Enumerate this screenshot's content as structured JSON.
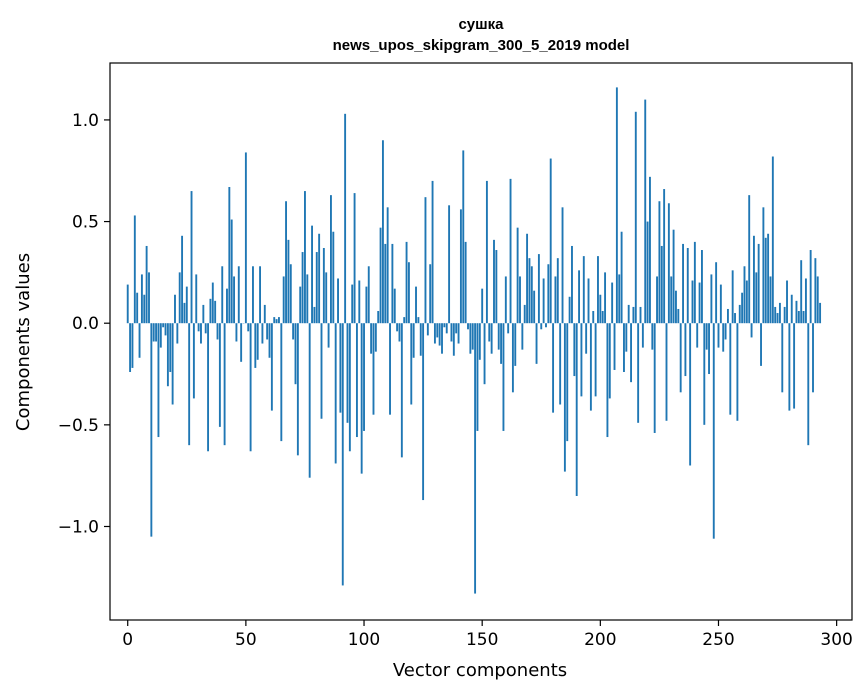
{
  "chart_data": {
    "type": "bar",
    "title": "сушка",
    "subtitle": "news_upos_skipgram_300_5_2019 model",
    "xlabel": "Vector components",
    "ylabel": "Components values",
    "xlim": [
      -7.5,
      306.5
    ],
    "ylim": [
      -1.46,
      1.28
    ],
    "xticks": [
      0,
      50,
      100,
      150,
      200,
      250,
      300
    ],
    "yticks": [
      -1.0,
      -0.5,
      0.0,
      0.5,
      1.0
    ],
    "xtick_labels": [
      "0",
      "50",
      "100",
      "150",
      "200",
      "250",
      "300"
    ],
    "ytick_labels": [
      "−1.0",
      "−0.5",
      "0.0",
      "0.5",
      "1.0"
    ],
    "grid": false,
    "bar_color": "#1f77b4",
    "values": [
      0.19,
      -0.24,
      -0.22,
      0.53,
      0.15,
      -0.17,
      0.24,
      0.14,
      0.38,
      0.25,
      -1.05,
      -0.09,
      -0.09,
      -0.56,
      -0.12,
      -0.02,
      -0.06,
      -0.31,
      -0.24,
      -0.4,
      0.14,
      -0.1,
      0.25,
      0.43,
      0.1,
      0.18,
      -0.6,
      0.65,
      -0.37,
      0.24,
      -0.04,
      -0.1,
      0.09,
      -0.05,
      -0.63,
      0.12,
      0.2,
      0.11,
      -0.08,
      -0.51,
      0.28,
      -0.6,
      0.17,
      0.67,
      0.51,
      0.23,
      -0.09,
      0.28,
      -0.19,
      0.0,
      0.84,
      -0.04,
      -0.63,
      0.28,
      -0.22,
      -0.18,
      0.28,
      -0.1,
      0.09,
      -0.08,
      -0.17,
      -0.43,
      0.03,
      0.02,
      0.03,
      -0.58,
      0.23,
      0.6,
      0.41,
      0.29,
      -0.08,
      -0.3,
      -0.65,
      0.18,
      0.35,
      0.65,
      0.24,
      -0.76,
      0.48,
      0.08,
      0.35,
      0.44,
      -0.47,
      0.37,
      0.25,
      -0.12,
      0.63,
      0.45,
      -0.69,
      0.22,
      -0.44,
      -1.29,
      1.03,
      -0.49,
      -0.63,
      0.19,
      0.64,
      -0.56,
      0.21,
      -0.74,
      -0.53,
      0.18,
      0.28,
      -0.15,
      -0.45,
      -0.14,
      0.06,
      0.47,
      0.9,
      0.39,
      0.57,
      -0.45,
      0.39,
      0.17,
      -0.04,
      -0.09,
      -0.66,
      0.03,
      0.4,
      0.3,
      -0.4,
      -0.17,
      0.18,
      0.03,
      -0.16,
      -0.87,
      0.62,
      -0.06,
      0.29,
      0.7,
      -0.1,
      -0.07,
      -0.11,
      -0.15,
      -0.02,
      -0.05,
      0.58,
      -0.09,
      -0.16,
      -0.05,
      -0.1,
      0.56,
      0.85,
      0.4,
      -0.03,
      -0.15,
      -0.13,
      -1.33,
      -0.53,
      -0.18,
      0.17,
      -0.3,
      0.7,
      -0.09,
      -0.15,
      0.41,
      0.36,
      -0.13,
      -0.2,
      -0.53,
      0.23,
      -0.05,
      0.71,
      -0.34,
      -0.21,
      0.47,
      0.23,
      -0.13,
      0.09,
      0.44,
      0.32,
      0.28,
      0.16,
      -0.2,
      0.34,
      -0.03,
      0.22,
      -0.02,
      0.29,
      0.81,
      -0.44,
      0.23,
      0.32,
      -0.4,
      0.57,
      -0.73,
      -0.58,
      0.13,
      0.38,
      -0.26,
      -0.85,
      0.26,
      -0.36,
      0.33,
      -0.15,
      0.22,
      -0.43,
      0.06,
      -0.36,
      0.33,
      0.14,
      0.06,
      0.25,
      -0.56,
      -0.37,
      0.2,
      -0.23,
      1.16,
      0.24,
      0.45,
      -0.24,
      -0.14,
      0.09,
      -0.29,
      0.08,
      1.04,
      -0.49,
      0.08,
      -0.12,
      1.1,
      0.5,
      0.72,
      -0.13,
      -0.54,
      0.23,
      0.6,
      0.38,
      0.66,
      -0.48,
      0.59,
      0.23,
      0.46,
      0.16,
      0.07,
      -0.34,
      0.39,
      -0.26,
      0.37,
      -0.7,
      0.21,
      0.4,
      -0.12,
      0.2,
      0.36,
      -0.5,
      -0.13,
      -0.25,
      0.24,
      -1.06,
      0.3,
      -0.12,
      0.19,
      -0.14,
      -0.08,
      0.07,
      -0.45,
      0.26,
      0.05,
      -0.48,
      0.09,
      0.15,
      0.28,
      0.21,
      0.63,
      -0.07,
      0.43,
      0.25,
      0.39,
      -0.21,
      0.57,
      0.42,
      0.44,
      0.23,
      0.82,
      0.08,
      0.05,
      0.1,
      -0.34,
      0.08,
      0.21,
      -0.43,
      0.14,
      -0.42,
      0.11,
      0.06,
      0.31,
      0.06,
      0.22,
      -0.6,
      0.36,
      -0.34,
      0.32,
      0.23,
      0.1
    ]
  }
}
